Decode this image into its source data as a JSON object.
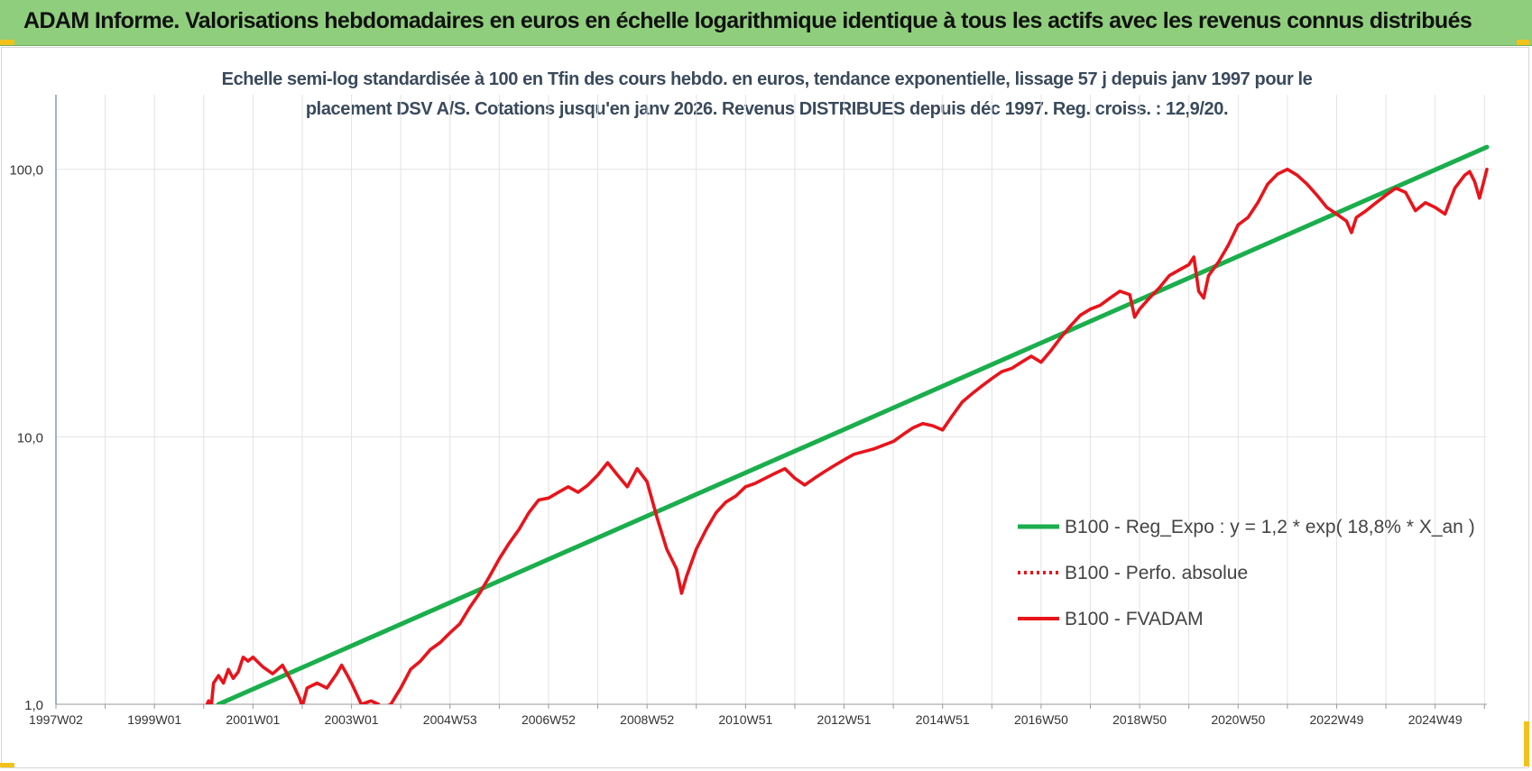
{
  "header": {
    "title": "ADAM Informe. Valorisations hebdomadaires en euros en échelle logarithmique identique à tous les actifs avec les revenus connus distribués"
  },
  "chart_data": {
    "type": "line",
    "title_lines": [
      "Echelle semi-log standardisée à 100 en Tfin des cours hebdo. en euros, tendance exponentielle, lissage 57 j depuis janv 1997 pour le",
      "placement DSV A/S. Cotations jusqu'en janv 2026. Revenus DISTRIBUES depuis déc 1997.  Reg. croiss. : 12,9/20."
    ],
    "xlabel": "",
    "ylabel": "",
    "y_scale": "log",
    "ylim": [
      1,
      190
    ],
    "xlim": [
      1997.0,
      2026.05
    ],
    "x_tick_labels": [
      {
        "label": "1997W02",
        "x": 1997.0
      },
      {
        "label": "1999W01",
        "x": 1999.0
      },
      {
        "label": "2001W01",
        "x": 2001.0
      },
      {
        "label": "2003W01",
        "x": 2003.0
      },
      {
        "label": "2004W53",
        "x": 2005.0
      },
      {
        "label": "2006W52",
        "x": 2007.0
      },
      {
        "label": "2008W52",
        "x": 2009.0
      },
      {
        "label": "2010W51",
        "x": 2011.0
      },
      {
        "label": "2012W51",
        "x": 2013.0
      },
      {
        "label": "2014W51",
        "x": 2015.0
      },
      {
        "label": "2016W50",
        "x": 2017.0
      },
      {
        "label": "2018W50",
        "x": 2019.0
      },
      {
        "label": "2020W50",
        "x": 2021.0
      },
      {
        "label": "2022W49",
        "x": 2023.0
      },
      {
        "label": "2024W49",
        "x": 2025.0
      }
    ],
    "y_tick_labels": [
      {
        "label": "1,0",
        "y": 1
      },
      {
        "label": "10,0",
        "y": 10
      },
      {
        "label": "100,0",
        "y": 100
      }
    ],
    "grid": true,
    "legend_position": "right-center",
    "series": [
      {
        "name": "B100 - Reg_Expo : y = 1,2 * exp( 18,8% *  X_an )",
        "color": "#1aae4c",
        "style": "solid",
        "points": [
          [
            2000.3,
            1.0
          ],
          [
            2026.05,
            121
          ]
        ]
      },
      {
        "name": "B100 - Perfo. absolue",
        "color": "#e8141b",
        "style": "dotted",
        "points": []
      },
      {
        "name": "B100 - FVADAM",
        "color": "#e8141b",
        "style": "solid",
        "points": [
          [
            2000.05,
            0.98
          ],
          [
            2000.1,
            1.03
          ],
          [
            2000.15,
            0.97
          ],
          [
            2000.2,
            1.2
          ],
          [
            2000.3,
            1.28
          ],
          [
            2000.4,
            1.2
          ],
          [
            2000.5,
            1.35
          ],
          [
            2000.6,
            1.25
          ],
          [
            2000.7,
            1.32
          ],
          [
            2000.8,
            1.5
          ],
          [
            2000.9,
            1.45
          ],
          [
            2001.0,
            1.5
          ],
          [
            2001.2,
            1.38
          ],
          [
            2001.4,
            1.3
          ],
          [
            2001.6,
            1.4
          ],
          [
            2001.8,
            1.2
          ],
          [
            2001.95,
            1.05
          ],
          [
            2002.0,
            0.98
          ],
          [
            2002.1,
            1.15
          ],
          [
            2002.3,
            1.2
          ],
          [
            2002.5,
            1.15
          ],
          [
            2002.7,
            1.3
          ],
          [
            2002.8,
            1.4
          ],
          [
            2002.9,
            1.3
          ],
          [
            2003.0,
            1.2
          ],
          [
            2003.2,
            1.0
          ],
          [
            2003.4,
            1.03
          ],
          [
            2003.55,
            1.0
          ],
          [
            2003.6,
            0.96
          ],
          [
            2003.8,
            1.0
          ],
          [
            2004.0,
            1.15
          ],
          [
            2004.2,
            1.35
          ],
          [
            2004.4,
            1.45
          ],
          [
            2004.6,
            1.6
          ],
          [
            2004.8,
            1.7
          ],
          [
            2005.0,
            1.85
          ],
          [
            2005.2,
            2.0
          ],
          [
            2005.4,
            2.3
          ],
          [
            2005.6,
            2.6
          ],
          [
            2005.8,
            3.0
          ],
          [
            2006.0,
            3.5
          ],
          [
            2006.2,
            4.0
          ],
          [
            2006.4,
            4.5
          ],
          [
            2006.6,
            5.2
          ],
          [
            2006.8,
            5.8
          ],
          [
            2007.0,
            5.9
          ],
          [
            2007.2,
            6.2
          ],
          [
            2007.4,
            6.5
          ],
          [
            2007.6,
            6.2
          ],
          [
            2007.8,
            6.6
          ],
          [
            2008.0,
            7.2
          ],
          [
            2008.2,
            8.0
          ],
          [
            2008.4,
            7.2
          ],
          [
            2008.6,
            6.5
          ],
          [
            2008.8,
            7.6
          ],
          [
            2009.0,
            6.8
          ],
          [
            2009.2,
            5.0
          ],
          [
            2009.4,
            3.8
          ],
          [
            2009.6,
            3.2
          ],
          [
            2009.7,
            2.6
          ],
          [
            2009.8,
            3.0
          ],
          [
            2010.0,
            3.8
          ],
          [
            2010.2,
            4.5
          ],
          [
            2010.4,
            5.2
          ],
          [
            2010.6,
            5.7
          ],
          [
            2010.8,
            6.0
          ],
          [
            2011.0,
            6.5
          ],
          [
            2011.2,
            6.7
          ],
          [
            2011.4,
            7.0
          ],
          [
            2011.6,
            7.3
          ],
          [
            2011.8,
            7.6
          ],
          [
            2012.0,
            7.0
          ],
          [
            2012.2,
            6.6
          ],
          [
            2012.4,
            7.0
          ],
          [
            2012.6,
            7.4
          ],
          [
            2012.8,
            7.8
          ],
          [
            2013.0,
            8.2
          ],
          [
            2013.2,
            8.6
          ],
          [
            2013.4,
            8.8
          ],
          [
            2013.6,
            9.0
          ],
          [
            2013.8,
            9.3
          ],
          [
            2014.0,
            9.6
          ],
          [
            2014.2,
            10.2
          ],
          [
            2014.4,
            10.8
          ],
          [
            2014.6,
            11.2
          ],
          [
            2014.8,
            11.0
          ],
          [
            2015.0,
            10.6
          ],
          [
            2015.2,
            12.0
          ],
          [
            2015.4,
            13.5
          ],
          [
            2015.6,
            14.5
          ],
          [
            2015.8,
            15.5
          ],
          [
            2016.0,
            16.5
          ],
          [
            2016.2,
            17.5
          ],
          [
            2016.4,
            18.0
          ],
          [
            2016.6,
            19.0
          ],
          [
            2016.8,
            20.0
          ],
          [
            2017.0,
            19.0
          ],
          [
            2017.2,
            21.0
          ],
          [
            2017.4,
            23.5
          ],
          [
            2017.6,
            26.0
          ],
          [
            2017.8,
            28.5
          ],
          [
            2018.0,
            30.0
          ],
          [
            2018.2,
            31.0
          ],
          [
            2018.4,
            33.0
          ],
          [
            2018.6,
            35.0
          ],
          [
            2018.8,
            34.0
          ],
          [
            2018.9,
            28.0
          ],
          [
            2019.0,
            30.0
          ],
          [
            2019.2,
            33.0
          ],
          [
            2019.4,
            36.0
          ],
          [
            2019.6,
            40.0
          ],
          [
            2019.8,
            42.0
          ],
          [
            2020.0,
            44.0
          ],
          [
            2020.1,
            47.0
          ],
          [
            2020.2,
            35.0
          ],
          [
            2020.3,
            33.0
          ],
          [
            2020.4,
            40.0
          ],
          [
            2020.6,
            45.0
          ],
          [
            2020.8,
            52.0
          ],
          [
            2021.0,
            62.0
          ],
          [
            2021.2,
            66.0
          ],
          [
            2021.4,
            75.0
          ],
          [
            2021.6,
            88.0
          ],
          [
            2021.8,
            96.0
          ],
          [
            2022.0,
            100.0
          ],
          [
            2022.2,
            95.0
          ],
          [
            2022.4,
            88.0
          ],
          [
            2022.6,
            80.0
          ],
          [
            2022.8,
            72.0
          ],
          [
            2023.0,
            68.0
          ],
          [
            2023.2,
            64.0
          ],
          [
            2023.3,
            58.0
          ],
          [
            2023.4,
            66.0
          ],
          [
            2023.6,
            70.0
          ],
          [
            2023.8,
            75.0
          ],
          [
            2024.0,
            80.0
          ],
          [
            2024.2,
            85.0
          ],
          [
            2024.4,
            82.0
          ],
          [
            2024.6,
            70.0
          ],
          [
            2024.8,
            75.0
          ],
          [
            2025.0,
            72.0
          ],
          [
            2025.2,
            68.0
          ],
          [
            2025.4,
            85.0
          ],
          [
            2025.6,
            95.0
          ],
          [
            2025.7,
            98.0
          ],
          [
            2025.8,
            90.0
          ],
          [
            2025.9,
            78.0
          ],
          [
            2026.0,
            92.0
          ],
          [
            2026.05,
            100.0
          ]
        ]
      }
    ]
  }
}
